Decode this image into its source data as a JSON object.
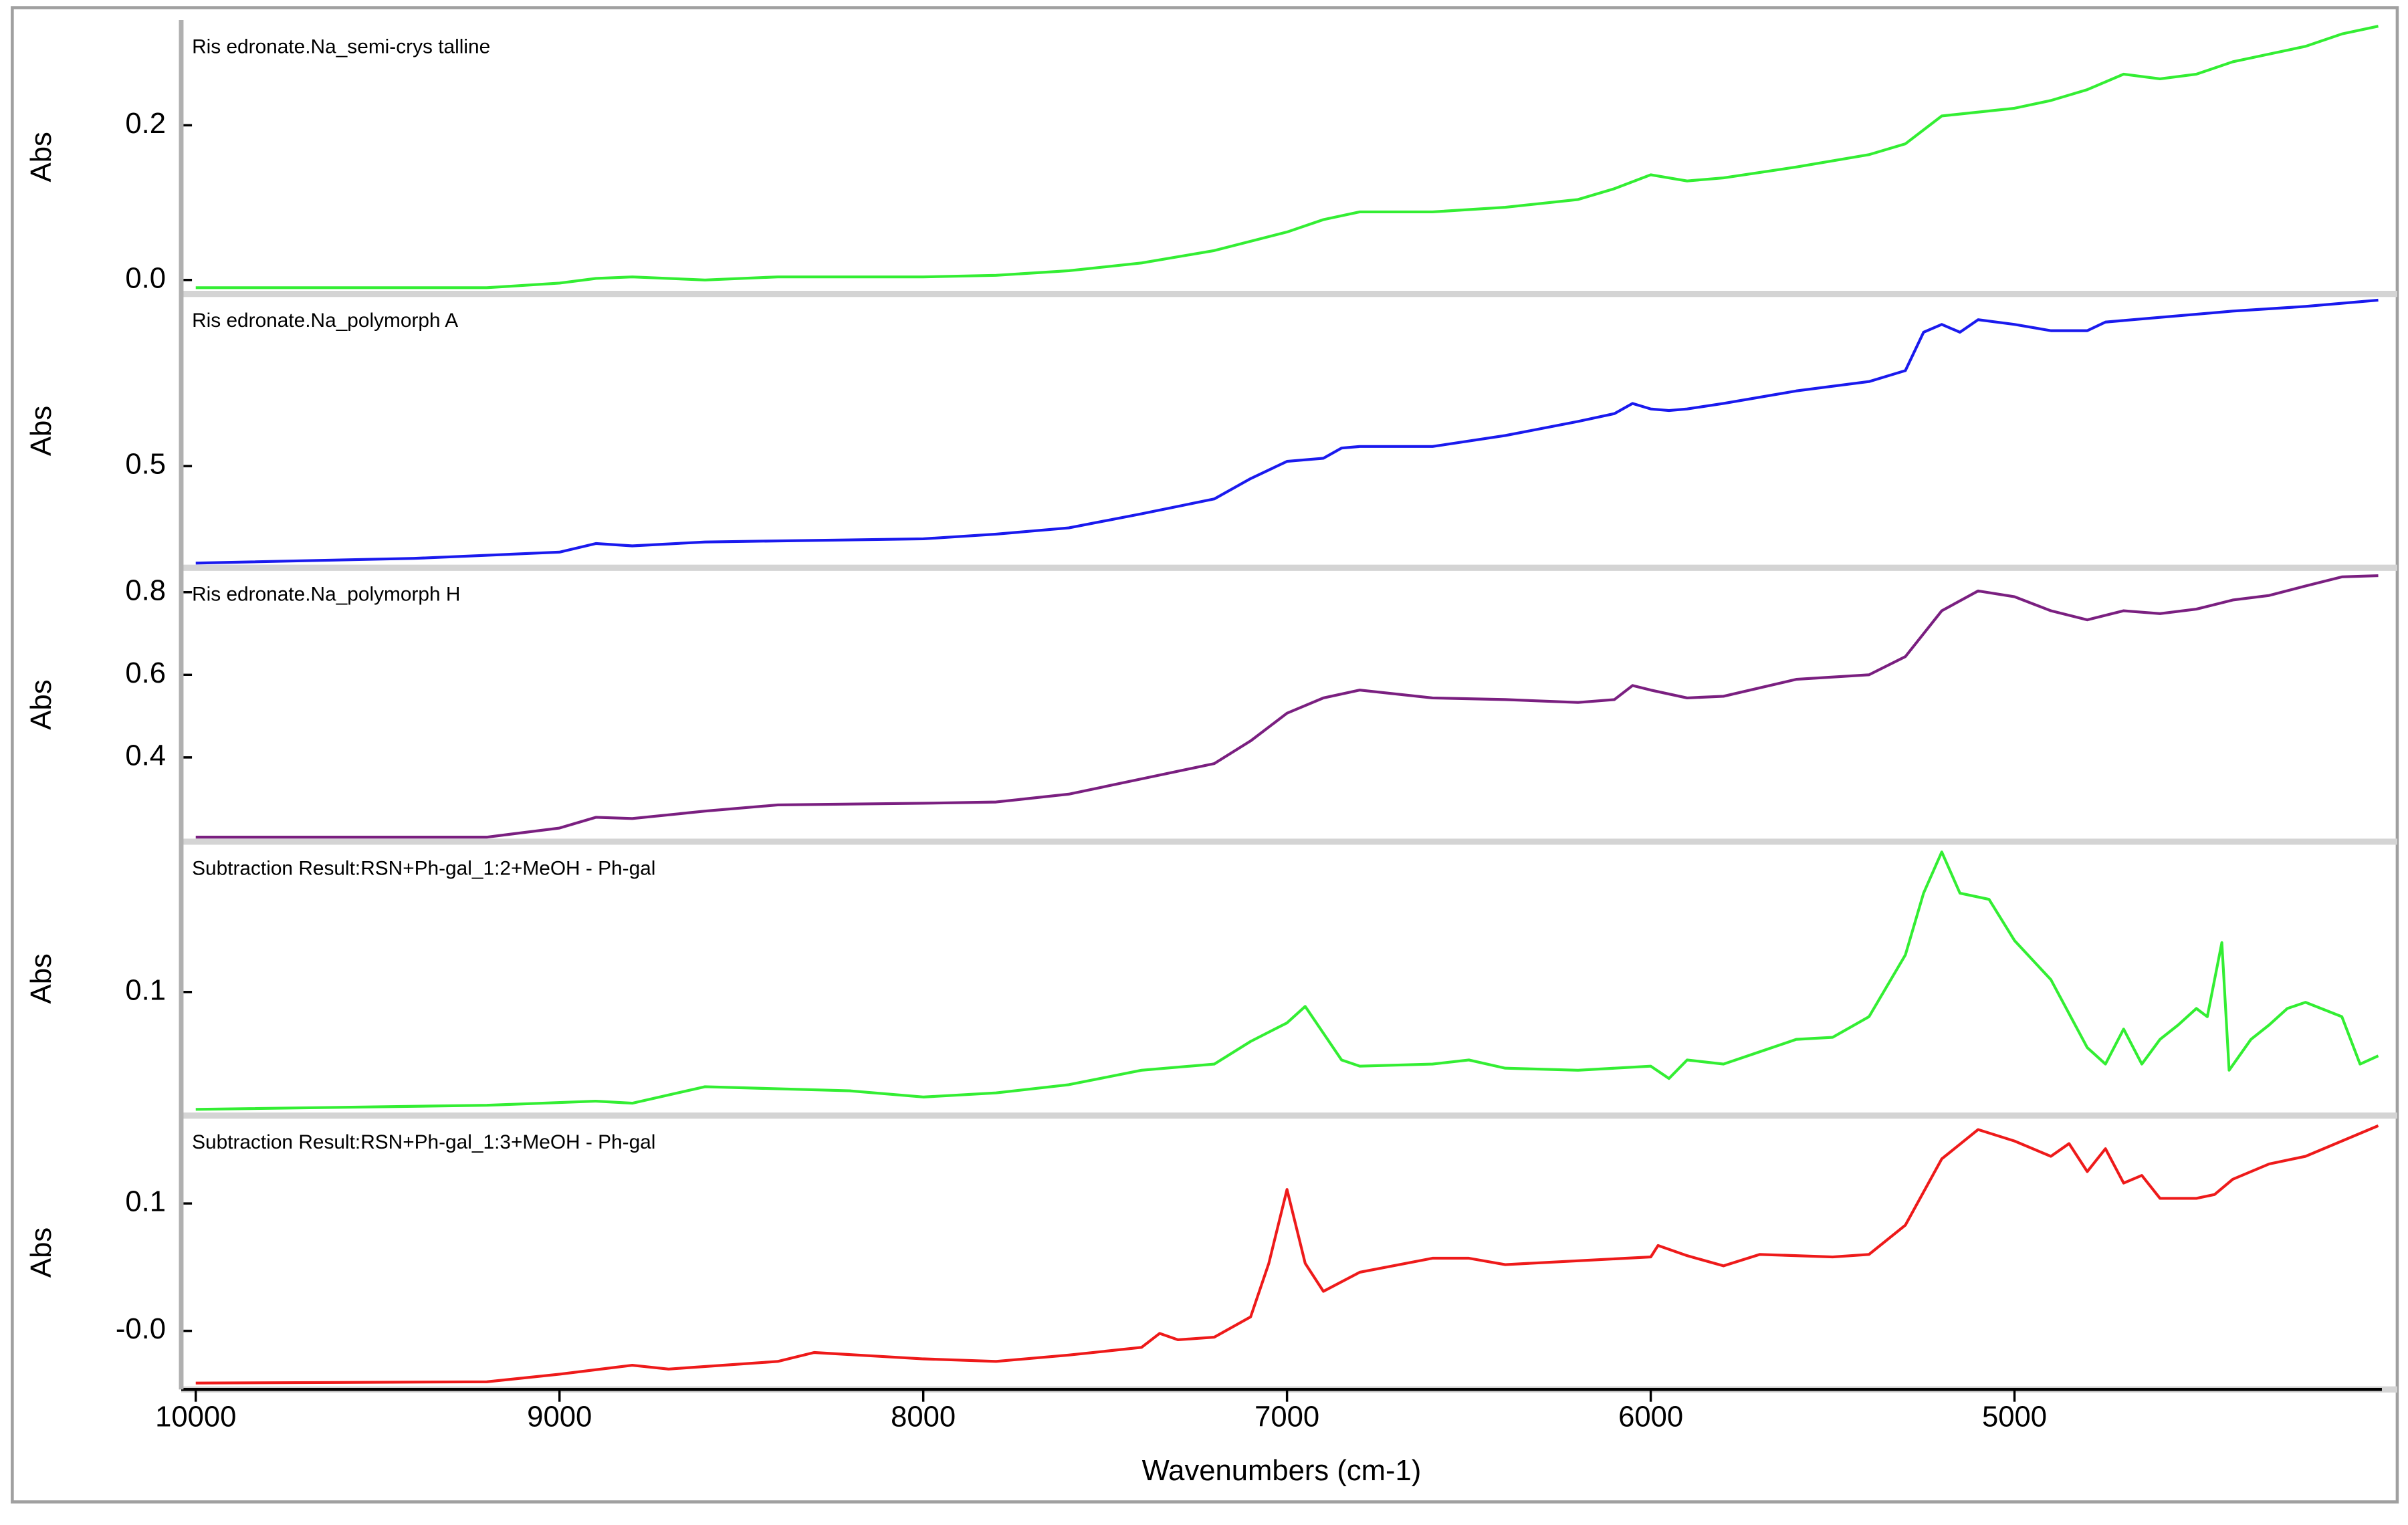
{
  "chart_data": [
    {
      "type": "line",
      "ylabel": "Abs",
      "xlim": [
        10040,
        3990
      ],
      "ylim": [
        -0.018,
        0.336
      ],
      "yticks": [
        {
          "value": 0,
          "label": "0.0"
        },
        0.2
      ],
      "x": [
        10000,
        9200,
        9000,
        8900,
        8800,
        8600,
        8400,
        8000,
        7800,
        7600,
        7400,
        7200,
        7000,
        6900,
        6800,
        6600,
        6400,
        6200,
        6100,
        6000,
        5900,
        5800,
        5600,
        5400,
        5300,
        5200,
        5000,
        4900,
        4800,
        4700,
        4600,
        4500,
        4400,
        4300,
        4200,
        4100,
        4000
      ],
      "series": [
        {
          "name": "Ris edronate.Na_semi-crys talline",
          "color": "#33ee33",
          "values": [
            -0.01,
            -0.01,
            -0.004,
            0.002,
            0.004,
            0,
            0.004,
            0.004,
            0.006,
            0.012,
            0.022,
            0.038,
            0.062,
            0.078,
            0.088,
            0.088,
            0.094,
            0.104,
            0.118,
            0.136,
            0.128,
            0.132,
            0.146,
            0.162,
            0.176,
            0.212,
            0.222,
            0.232,
            0.246,
            0.266,
            0.26,
            0.266,
            0.282,
            0.292,
            0.302,
            0.318,
            0.328
          ]
        }
      ]
    },
    {
      "type": "line",
      "ylabel": "Abs",
      "xlim": [
        10040,
        3990
      ],
      "ylim": [
        0.37,
        0.72
      ],
      "yticks": [
        0.5
      ],
      "x": [
        10000,
        9400,
        9000,
        8900,
        8800,
        8600,
        8000,
        7800,
        7600,
        7400,
        7200,
        7100,
        7000,
        6900,
        6850,
        6800,
        6600,
        6400,
        6200,
        6100,
        6050,
        6000,
        5950,
        5900,
        5800,
        5600,
        5400,
        5300,
        5250,
        5200,
        5150,
        5100,
        5000,
        4900,
        4800,
        4750,
        4600,
        4400,
        4200,
        4000
      ],
      "series": [
        {
          "name": "Ris edronate.Na_polymorph A",
          "color": "#1a1aee",
          "values": [
            0.376,
            0.382,
            0.39,
            0.401,
            0.398,
            0.403,
            0.407,
            0.413,
            0.421,
            0.439,
            0.458,
            0.484,
            0.506,
            0.51,
            0.523,
            0.525,
            0.525,
            0.539,
            0.557,
            0.567,
            0.58,
            0.573,
            0.571,
            0.573,
            0.58,
            0.596,
            0.608,
            0.622,
            0.671,
            0.681,
            0.671,
            0.687,
            0.681,
            0.673,
            0.673,
            0.684,
            0.69,
            0.698,
            0.704,
            0.712
          ]
        }
      ]
    },
    {
      "type": "line",
      "ylabel": "Abs",
      "xlim": [
        10040,
        3990
      ],
      "ylim": [
        0.196,
        0.859
      ],
      "yticks": [
        0.4,
        0.6,
        0.8
      ],
      "x": [
        10000,
        9200,
        9000,
        8900,
        8800,
        8600,
        8400,
        8000,
        7800,
        7600,
        7400,
        7200,
        7100,
        7000,
        6900,
        6800,
        6600,
        6400,
        6200,
        6100,
        6050,
        6000,
        5900,
        5800,
        5600,
        5400,
        5300,
        5200,
        5100,
        5000,
        4900,
        4800,
        4700,
        4600,
        4500,
        4400,
        4300,
        4200,
        4100,
        4000
      ],
      "series": [
        {
          "name": "Ris edronate.Na_polymorph H",
          "color": "#7a1f80",
          "values": [
            0.207,
            0.207,
            0.229,
            0.255,
            0.252,
            0.27,
            0.285,
            0.289,
            0.292,
            0.311,
            0.348,
            0.385,
            0.44,
            0.507,
            0.544,
            0.563,
            0.544,
            0.54,
            0.533,
            0.54,
            0.574,
            0.563,
            0.544,
            0.548,
            0.589,
            0.6,
            0.644,
            0.755,
            0.803,
            0.789,
            0.755,
            0.733,
            0.755,
            0.748,
            0.759,
            0.781,
            0.792,
            0.815,
            0.837,
            0.84
          ]
        }
      ]
    },
    {
      "type": "line",
      "ylabel": "Abs",
      "xlim": [
        10040,
        3990
      ],
      "ylim": [
        0.04,
        0.173
      ],
      "yticks": [
        0.1
      ],
      "x": [
        10000,
        9200,
        8900,
        8800,
        8600,
        8200,
        8000,
        7800,
        7600,
        7400,
        7200,
        7100,
        7000,
        6950,
        6900,
        6850,
        6800,
        6600,
        6500,
        6400,
        6200,
        6000,
        5950,
        5900,
        5800,
        5700,
        5600,
        5500,
        5400,
        5300,
        5250,
        5200,
        5150,
        5070,
        5000,
        4900,
        4800,
        4750,
        4700,
        4650,
        4600,
        4550,
        4500,
        4470,
        4430,
        4410,
        4350,
        4300,
        4250,
        4200,
        4100,
        4050,
        4000
      ],
      "series": [
        {
          "name": "Subtraction Result:RSN+Ph-gal_1:2+MeOH - Ph-gal",
          "color": "#33ee33",
          "values": [
            0.043,
            0.045,
            0.047,
            0.046,
            0.054,
            0.052,
            0.049,
            0.051,
            0.055,
            0.062,
            0.065,
            0.076,
            0.085,
            0.093,
            0.08,
            0.067,
            0.064,
            0.065,
            0.067,
            0.063,
            0.062,
            0.064,
            0.058,
            0.067,
            0.065,
            0.071,
            0.077,
            0.078,
            0.088,
            0.118,
            0.148,
            0.168,
            0.148,
            0.145,
            0.125,
            0.106,
            0.073,
            0.065,
            0.082,
            0.065,
            0.077,
            0.084,
            0.092,
            0.088,
            0.124,
            0.062,
            0.077,
            0.084,
            0.092,
            0.095,
            0.088,
            0.065,
            0.069
          ]
        }
      ]
    },
    {
      "type": "line",
      "ylabel": "Abs",
      "xlabel": "Wavenumbers (cm-1)",
      "xlim": [
        10040,
        3990
      ],
      "ylim": [
        -0.046,
        0.169
      ],
      "xticks": [
        10000,
        9000,
        8000,
        7000,
        6000,
        5000
      ],
      "yticks": [
        {
          "value": 0,
          "label": "-0.0"
        },
        0.1
      ],
      "x": [
        10000,
        9200,
        9000,
        8800,
        8700,
        8400,
        8300,
        8000,
        7800,
        7600,
        7400,
        7350,
        7300,
        7200,
        7100,
        7050,
        7000,
        6950,
        6900,
        6800,
        6600,
        6500,
        6400,
        6200,
        6000,
        5980,
        5900,
        5800,
        5700,
        5500,
        5400,
        5300,
        5200,
        5100,
        5000,
        4900,
        4850,
        4800,
        4750,
        4700,
        4650,
        4600,
        4500,
        4450,
        4400,
        4300,
        4200,
        4100,
        4000
      ],
      "series": [
        {
          "name": "Subtraction Result:RSN+Ph-gal_1:3+MeOH - Ph-gal",
          "color": "#ee1a1a",
          "values": [
            -0.041,
            -0.04,
            -0.034,
            -0.027,
            -0.03,
            -0.024,
            -0.017,
            -0.022,
            -0.024,
            -0.019,
            -0.013,
            -0.002,
            -0.007,
            -0.005,
            0.011,
            0.053,
            0.111,
            0.053,
            0.031,
            0.046,
            0.057,
            0.057,
            0.052,
            0.055,
            0.058,
            0.067,
            0.059,
            0.051,
            0.06,
            0.058,
            0.06,
            0.083,
            0.135,
            0.158,
            0.149,
            0.137,
            0.147,
            0.125,
            0.143,
            0.116,
            0.122,
            0.104,
            0.104,
            0.107,
            0.119,
            0.131,
            0.137,
            0.149,
            0.161
          ]
        }
      ]
    }
  ]
}
